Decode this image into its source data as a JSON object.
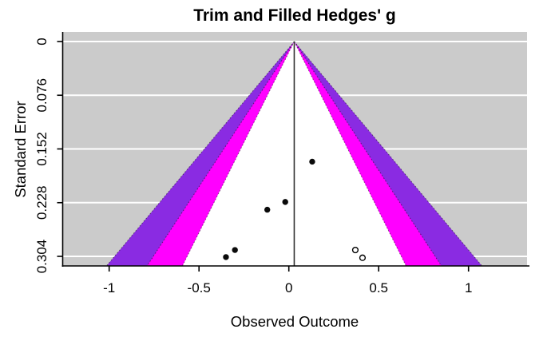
{
  "chart_data": {
    "type": "scatter",
    "subtype": "trim-and-fill-funnel-plot",
    "title": "Trim and Filled Hedges' g",
    "xlabel": "Observed Outcome",
    "ylabel": "Standard Error",
    "x_ticks": [
      -1,
      -0.5,
      0,
      0.5,
      1
    ],
    "x_tick_labels": [
      "-1",
      "-0.5",
      "0",
      "0.5",
      "1"
    ],
    "y_ticks": [
      0,
      0.076,
      0.152,
      0.228,
      0.304
    ],
    "y_tick_labels": [
      "0",
      "0.076",
      "0.152",
      "0.228",
      "0.304"
    ],
    "xlim": [
      -1.26,
      1.33
    ],
    "ylim": [
      0,
      0.318
    ],
    "y_axis_inverted": true,
    "grid": "white horizontal reference lines at y ticks over gray background",
    "estimate": 0.03,
    "funnel_bands": [
      {
        "level": "99.9",
        "z": 3.29,
        "color": "#8A2BE2"
      },
      {
        "level": "99",
        "z": 2.58,
        "color": "#FF00FF"
      },
      {
        "level": "95",
        "z": 1.96,
        "color": "#FFFFFF"
      }
    ],
    "series": [
      {
        "name": "observed-studies",
        "marker": "filled-circle",
        "color": "#000000",
        "points": [
          {
            "x": 0.13,
            "se": 0.17
          },
          {
            "x": -0.02,
            "se": 0.227
          },
          {
            "x": -0.12,
            "se": 0.238
          },
          {
            "x": -0.3,
            "se": 0.295
          },
          {
            "x": -0.35,
            "se": 0.305
          }
        ]
      },
      {
        "name": "imputed-studies",
        "marker": "open-circle",
        "color": "#FFFFFF",
        "stroke": "#000000",
        "points": [
          {
            "x": 0.37,
            "se": 0.295
          },
          {
            "x": 0.41,
            "se": 0.306
          }
        ]
      }
    ]
  },
  "colors": {
    "page_background": "#FFFFFF",
    "plot_background": "#CBCBCB",
    "gridline": "#FFFFFF",
    "band_999": "#8A2BE2",
    "band_99": "#FF00FF",
    "band_95": "#FFFFFF",
    "estimate_line": "#333333",
    "axis": "#000000",
    "point_fill": "#0A0A0A"
  }
}
